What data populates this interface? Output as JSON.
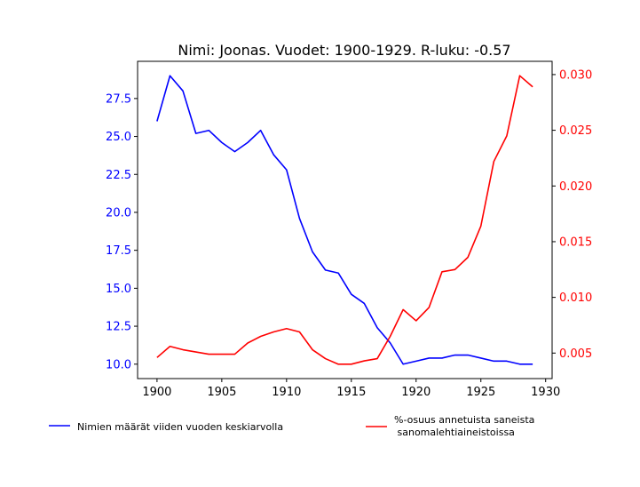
{
  "chart_data": {
    "type": "line",
    "title": "Nimi: Joonas. Vuodet: 1900-1929. R-luku: -0.57",
    "x": [
      1900,
      1901,
      1902,
      1903,
      1904,
      1905,
      1906,
      1907,
      1908,
      1909,
      1910,
      1911,
      1912,
      1913,
      1914,
      1915,
      1916,
      1917,
      1918,
      1919,
      1920,
      1921,
      1922,
      1923,
      1924,
      1925,
      1926,
      1927,
      1928,
      1929
    ],
    "xlim": [
      1898.5,
      1930.5
    ],
    "x_ticks": [
      "1900",
      "1905",
      "1910",
      "1915",
      "1920",
      "1925",
      "1930"
    ],
    "grid": false,
    "legend_placement": "below",
    "series": [
      {
        "name": "Nimien määrät viiden vuoden keskiarvolla",
        "axis": "left",
        "color": "#0000ff",
        "values": [
          26.0,
          29.0,
          28.0,
          25.2,
          25.4,
          24.6,
          24.0,
          24.6,
          25.4,
          23.8,
          22.8,
          19.6,
          17.4,
          16.2,
          16.0,
          14.6,
          14.0,
          12.4,
          11.4,
          10.0,
          10.2,
          10.4,
          10.4,
          10.6,
          10.6,
          10.4,
          10.2,
          10.2,
          10.0,
          10.0
        ]
      },
      {
        "name": "%-osuus annetuista saneista\n sanomalehtiaineistoissa",
        "axis": "right",
        "color": "#ff0000",
        "values": [
          0.0046,
          0.0056,
          0.0053,
          0.0051,
          0.0049,
          0.0049,
          0.0049,
          0.0059,
          0.0065,
          0.0069,
          0.0072,
          0.0069,
          0.0053,
          0.0045,
          0.004,
          0.004,
          0.0043,
          0.0045,
          0.0065,
          0.0089,
          0.0079,
          0.0091,
          0.0123,
          0.0125,
          0.0136,
          0.0164,
          0.0222,
          0.0245,
          0.0299,
          0.0289
        ]
      }
    ],
    "y_left": {
      "lim": [
        9.05,
        29.95
      ],
      "ticks": [
        "10.0",
        "12.5",
        "15.0",
        "17.5",
        "20.0",
        "22.5",
        "25.0",
        "27.5"
      ],
      "color": "#0000ff"
    },
    "y_right": {
      "lim": [
        0.00271,
        0.03119
      ],
      "ticks": [
        "0.005",
        "0.010",
        "0.015",
        "0.020",
        "0.025",
        "0.030"
      ],
      "color": "#ff0000"
    }
  }
}
